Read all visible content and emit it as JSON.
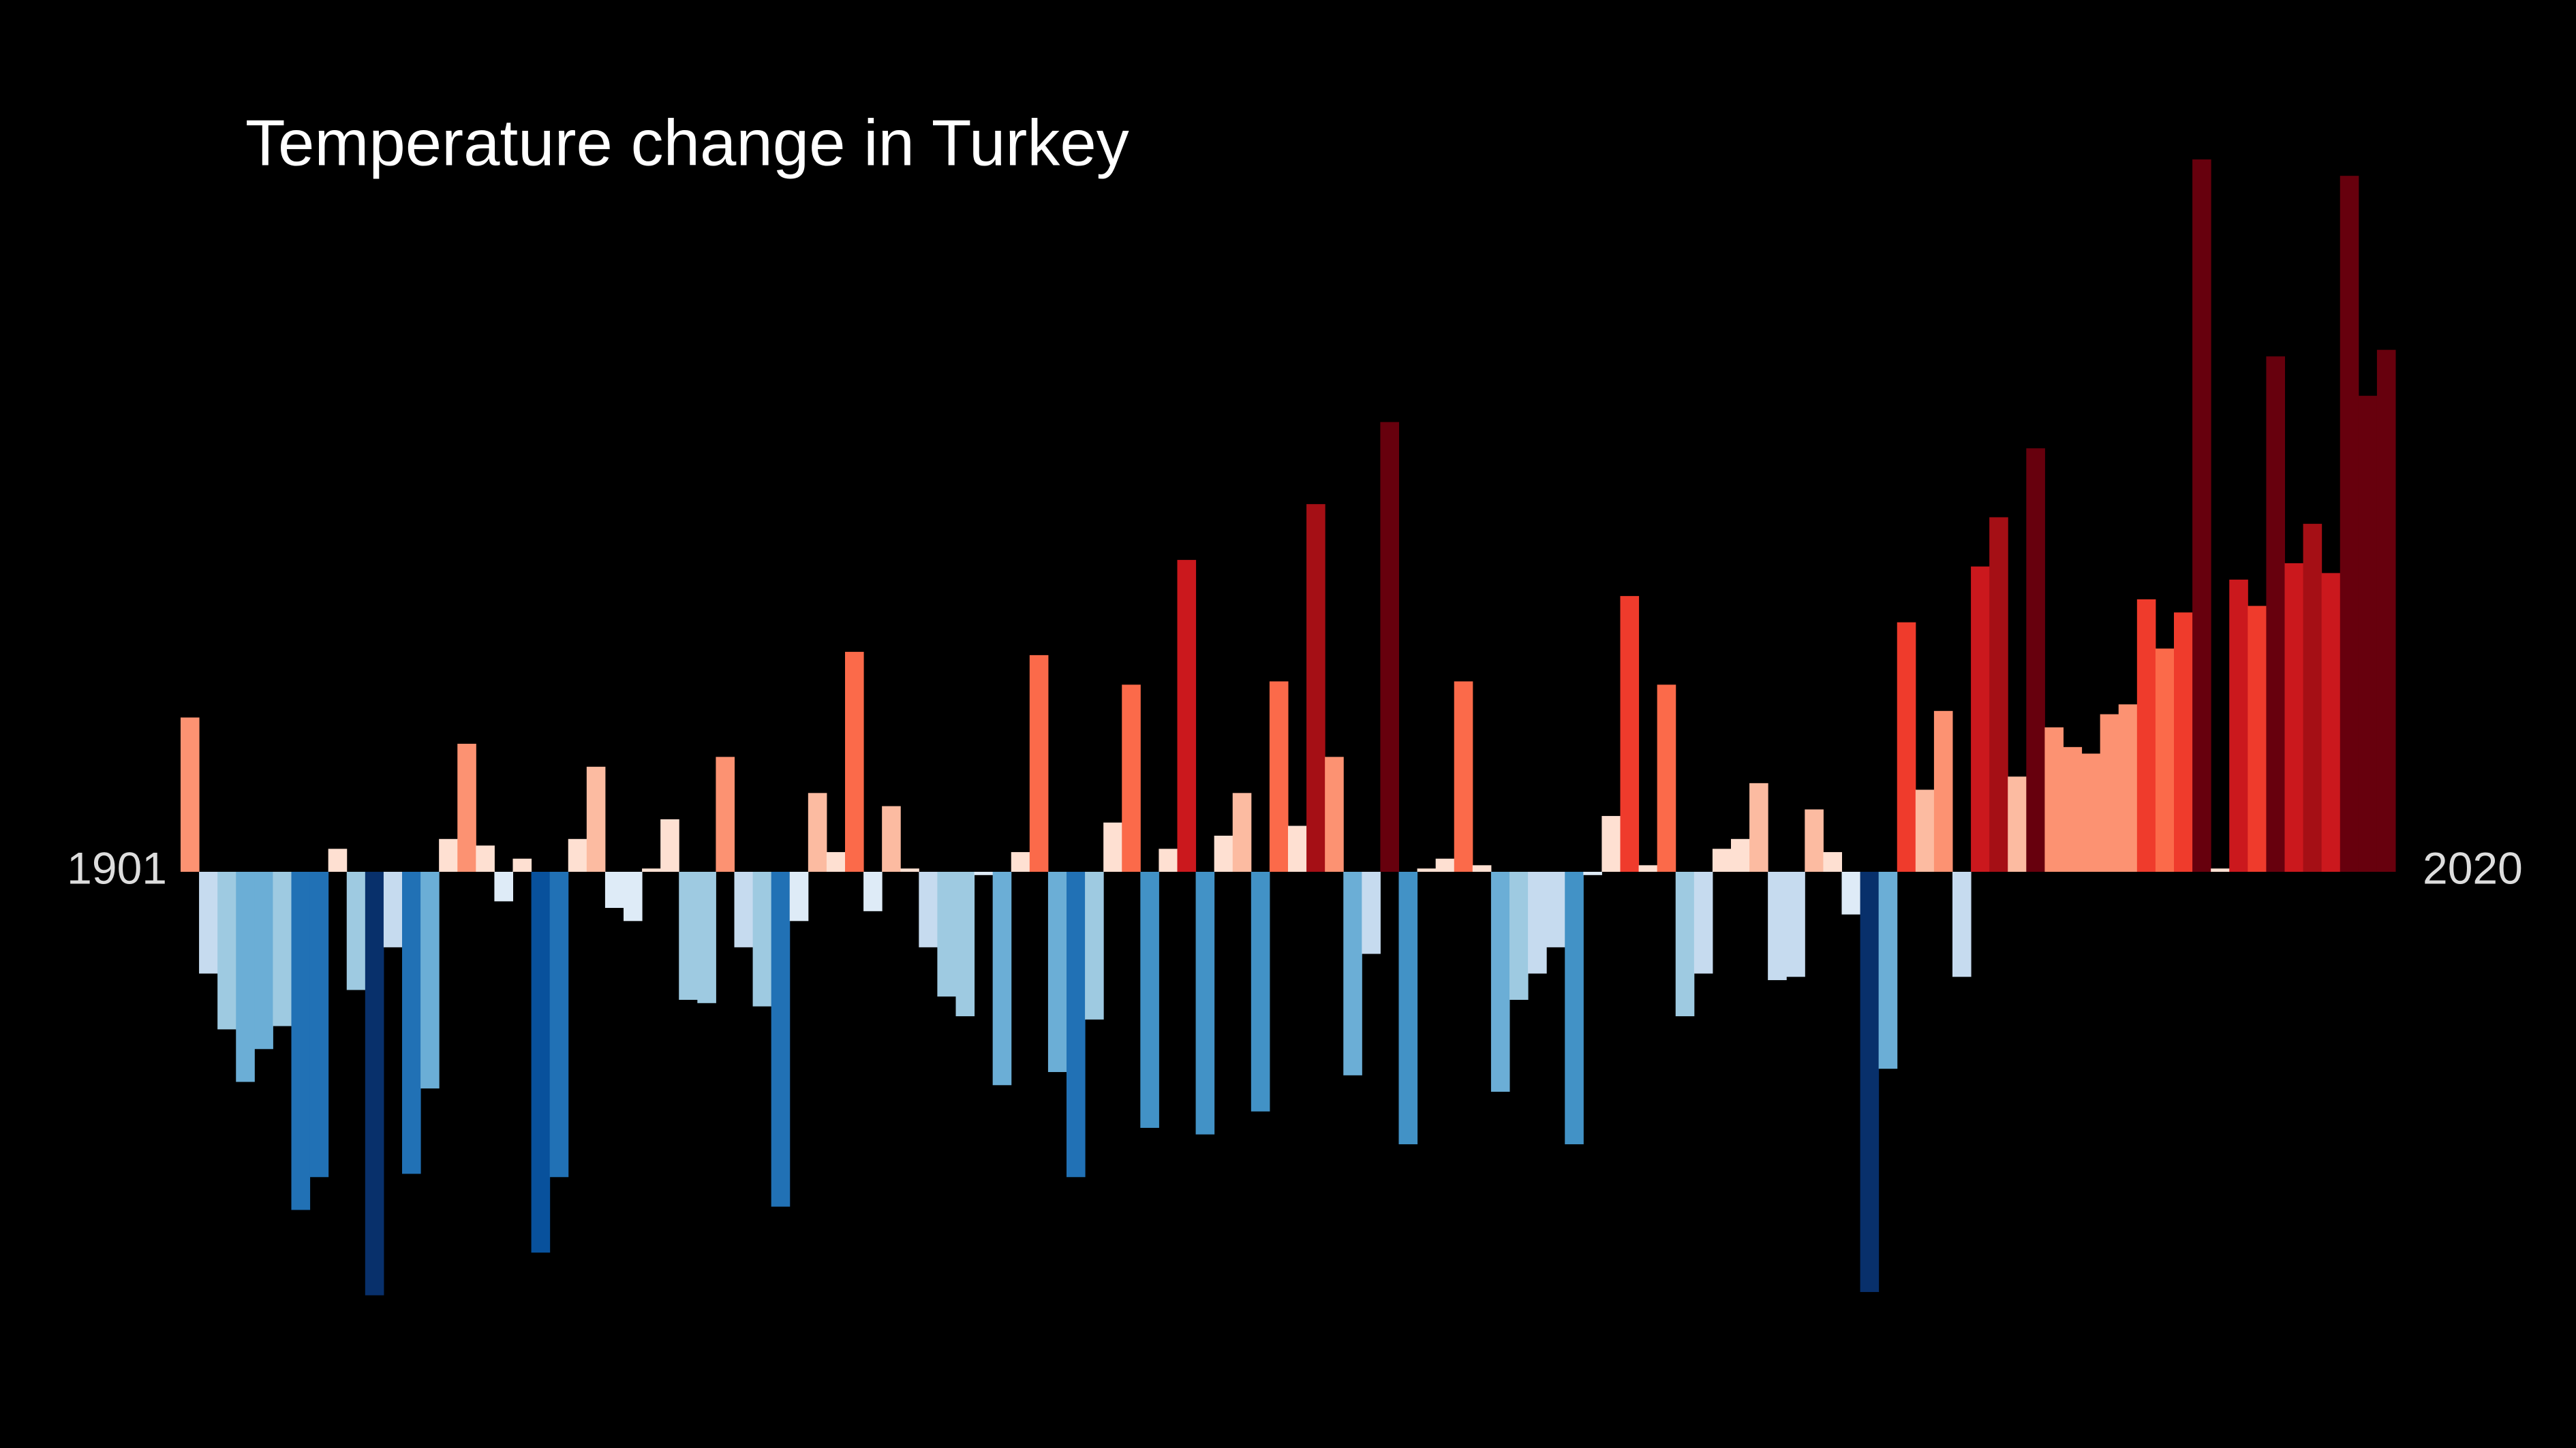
{
  "chart_data": {
    "type": "bar",
    "title": "Temperature change in Turkey",
    "categories": [
      "1901",
      null,
      null,
      null,
      null,
      null,
      null,
      null,
      null,
      null,
      null,
      null,
      null,
      null,
      null,
      null,
      null,
      null,
      null,
      null,
      null,
      null,
      null,
      null,
      null,
      null,
      null,
      null,
      null,
      null,
      null,
      null,
      null,
      null,
      null,
      null,
      null,
      null,
      null,
      null,
      null,
      null,
      null,
      null,
      null,
      null,
      null,
      null,
      null,
      null,
      null,
      null,
      null,
      null,
      null,
      null,
      null,
      null,
      null,
      null,
      null,
      null,
      null,
      null,
      null,
      null,
      null,
      null,
      null,
      null,
      null,
      null,
      null,
      null,
      null,
      null,
      null,
      null,
      null,
      null,
      null,
      null,
      null,
      null,
      null,
      null,
      null,
      null,
      null,
      null,
      null,
      null,
      null,
      null,
      null,
      null,
      null,
      null,
      null,
      null,
      null,
      null,
      null,
      null,
      null,
      null,
      null,
      null,
      null,
      null,
      null,
      null,
      null,
      null,
      null,
      null,
      null,
      null,
      null,
      "2020"
    ],
    "values": [
      0.47,
      -0.31,
      -0.48,
      -0.64,
      -0.54,
      -0.47,
      -1.03,
      -0.93,
      0.07,
      -0.36,
      -1.29,
      -0.23,
      -0.92,
      -0.66,
      0.1,
      0.39,
      0.08,
      -0.09,
      0.04,
      -1.16,
      -0.93,
      0.1,
      0.32,
      -0.11,
      -0.15,
      0.01,
      0.16,
      -0.39,
      -0.4,
      0.35,
      -0.23,
      -0.41,
      -1.02,
      -0.15,
      0.24,
      0.06,
      0.67,
      -0.12,
      0.2,
      0.01,
      -0.23,
      -0.38,
      -0.44,
      -0.01,
      -0.65,
      0.06,
      0.66,
      -0.61,
      -0.93,
      -0.45,
      0.15,
      0.57,
      -0.78,
      0.07,
      0.95,
      -0.8,
      0.11,
      0.24,
      -0.73,
      0.58,
      0.14,
      1.12,
      0.35,
      -0.62,
      -0.25,
      1.37,
      -0.83,
      0.01,
      0.04,
      0.58,
      0.02,
      -0.67,
      -0.39,
      -0.31,
      -0.23,
      -0.83,
      -0.01,
      0.17,
      0.84,
      0.02,
      0.57,
      -0.44,
      -0.31,
      0.07,
      0.1,
      0.27,
      -0.33,
      -0.32,
      0.19,
      0.06,
      -0.13,
      -1.28,
      -0.6,
      0.76,
      0.25,
      0.49,
      -0.32,
      0.93,
      1.08,
      0.29,
      1.29,
      0.44,
      0.38,
      0.36,
      0.48,
      0.51,
      0.83,
      0.68,
      0.79,
      2.17,
      0.01,
      0.89,
      0.81,
      1.57,
      0.94,
      1.06,
      0.91,
      2.12,
      1.45,
      1.59
    ],
    "colorscale": [
      "#08306b",
      "#08519c",
      "#2171b5",
      "#4292c6",
      "#6baed6",
      "#9ecae1",
      "#c6dbef",
      "#deebf7",
      "#fee0d2",
      "#fcbba1",
      "#fc9272",
      "#fb6a4a",
      "#ef3b2c",
      "#cb181d",
      "#a50f15",
      "#67000d"
    ],
    "clim": [
      -1.4,
      1.4
    ]
  }
}
